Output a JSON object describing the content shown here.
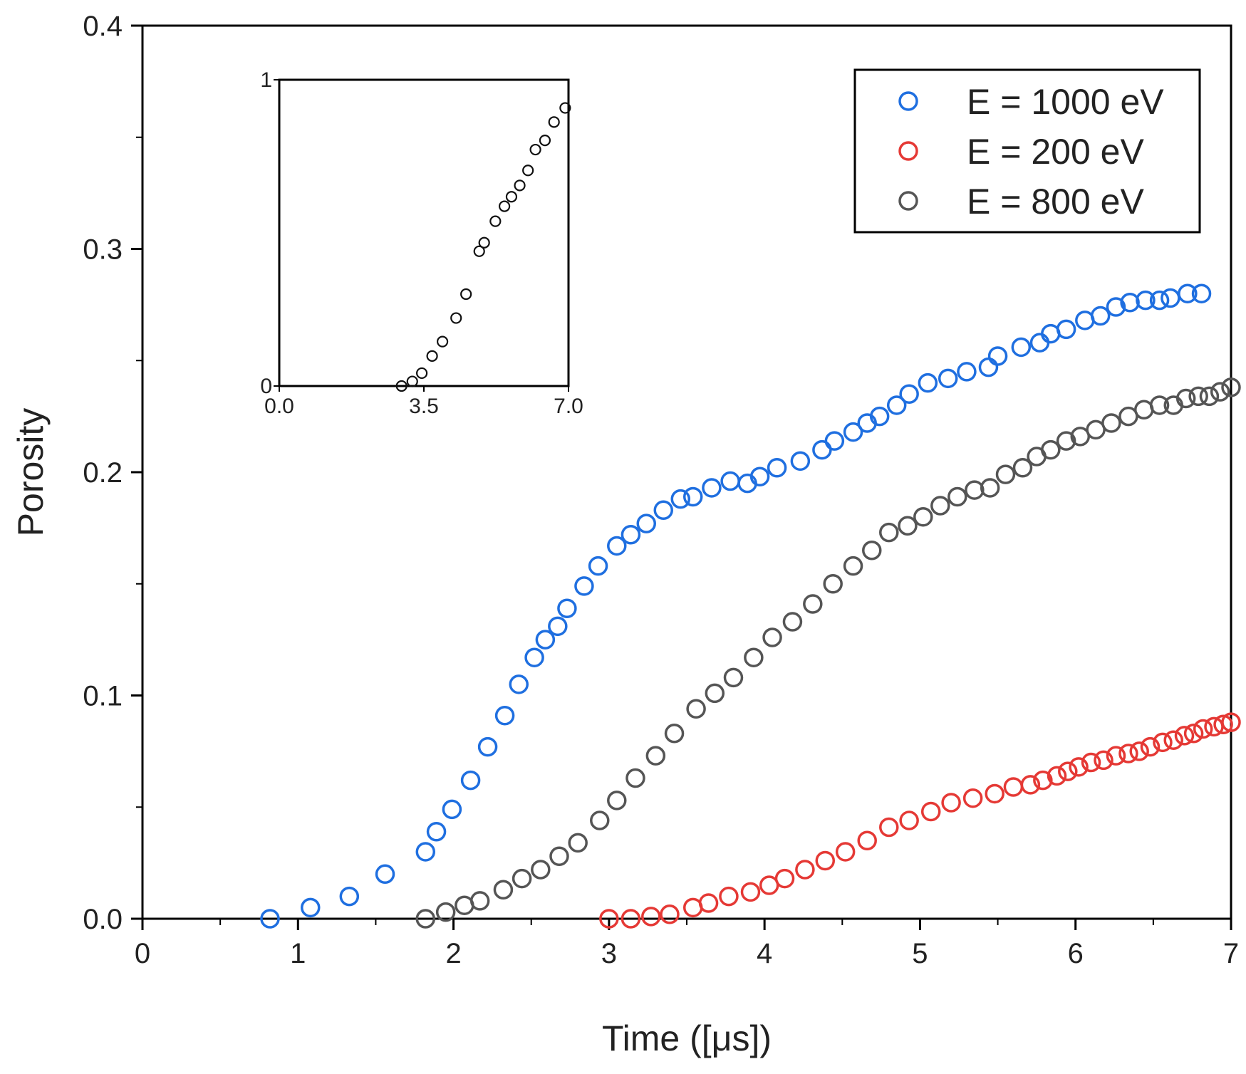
{
  "chart_data": [
    {
      "type": "scatter",
      "title": "",
      "xlabel": "Time ([μs])",
      "ylabel": "Porosity",
      "xlim": [
        0,
        7
      ],
      "ylim": [
        0,
        0.4
      ],
      "xticks": [
        {
          "value": 0,
          "label": "0"
        },
        {
          "value": 1,
          "label": "1"
        },
        {
          "value": 2,
          "label": "2"
        },
        {
          "value": 3,
          "label": "3"
        },
        {
          "value": 4,
          "label": "4"
        },
        {
          "value": 5,
          "label": "5"
        },
        {
          "value": 6,
          "label": "6"
        },
        {
          "value": 7,
          "label": "7"
        }
      ],
      "yticks": [
        {
          "value": 0.0,
          "label": "0.0"
        },
        {
          "value": 0.1,
          "label": "0.1"
        },
        {
          "value": 0.2,
          "label": "0.2"
        },
        {
          "value": 0.3,
          "label": "0.3"
        },
        {
          "value": 0.4,
          "label": "0.4"
        }
      ],
      "grid": false,
      "legend_position": "top-right",
      "series": [
        {
          "name": "E = 1000 eV",
          "color": "#1f6fe0",
          "marker": "open-circle",
          "points": [
            [
              0.82,
              0.0
            ],
            [
              1.08,
              0.005
            ],
            [
              1.33,
              0.01
            ],
            [
              1.56,
              0.02
            ],
            [
              1.82,
              0.03
            ],
            [
              1.89,
              0.039
            ],
            [
              1.99,
              0.049
            ],
            [
              2.11,
              0.062
            ],
            [
              2.22,
              0.077
            ],
            [
              2.33,
              0.091
            ],
            [
              2.42,
              0.105
            ],
            [
              2.52,
              0.117
            ],
            [
              2.59,
              0.125
            ],
            [
              2.67,
              0.131
            ],
            [
              2.73,
              0.139
            ],
            [
              2.84,
              0.149
            ],
            [
              2.93,
              0.158
            ],
            [
              3.05,
              0.167
            ],
            [
              3.14,
              0.172
            ],
            [
              3.24,
              0.177
            ],
            [
              3.35,
              0.183
            ],
            [
              3.46,
              0.188
            ],
            [
              3.54,
              0.189
            ],
            [
              3.66,
              0.193
            ],
            [
              3.78,
              0.196
            ],
            [
              3.89,
              0.195
            ],
            [
              3.97,
              0.198
            ],
            [
              4.08,
              0.202
            ],
            [
              4.23,
              0.205
            ],
            [
              4.37,
              0.21
            ],
            [
              4.45,
              0.214
            ],
            [
              4.57,
              0.218
            ],
            [
              4.66,
              0.222
            ],
            [
              4.74,
              0.225
            ],
            [
              4.85,
              0.23
            ],
            [
              4.93,
              0.235
            ],
            [
              5.05,
              0.24
            ],
            [
              5.18,
              0.242
            ],
            [
              5.3,
              0.245
            ],
            [
              5.44,
              0.247
            ],
            [
              5.5,
              0.252
            ],
            [
              5.65,
              0.256
            ],
            [
              5.77,
              0.258
            ],
            [
              5.84,
              0.262
            ],
            [
              5.94,
              0.264
            ],
            [
              6.06,
              0.268
            ],
            [
              6.16,
              0.27
            ],
            [
              6.26,
              0.274
            ],
            [
              6.35,
              0.276
            ],
            [
              6.45,
              0.277
            ],
            [
              6.54,
              0.277
            ],
            [
              6.61,
              0.278
            ],
            [
              6.72,
              0.28
            ],
            [
              6.81,
              0.28
            ]
          ]
        },
        {
          "name": "E = 200 eV",
          "color": "#e53935",
          "marker": "open-circle",
          "points": [
            [
              3.0,
              0.0
            ],
            [
              3.14,
              0.0
            ],
            [
              3.27,
              0.001
            ],
            [
              3.39,
              0.002
            ],
            [
              3.54,
              0.005
            ],
            [
              3.64,
              0.007
            ],
            [
              3.77,
              0.01
            ],
            [
              3.91,
              0.012
            ],
            [
              4.03,
              0.015
            ],
            [
              4.13,
              0.018
            ],
            [
              4.26,
              0.022
            ],
            [
              4.39,
              0.026
            ],
            [
              4.52,
              0.03
            ],
            [
              4.66,
              0.035
            ],
            [
              4.8,
              0.041
            ],
            [
              4.93,
              0.044
            ],
            [
              5.07,
              0.048
            ],
            [
              5.2,
              0.052
            ],
            [
              5.34,
              0.054
            ],
            [
              5.48,
              0.056
            ],
            [
              5.6,
              0.059
            ],
            [
              5.71,
              0.06
            ],
            [
              5.79,
              0.062
            ],
            [
              5.88,
              0.064
            ],
            [
              5.95,
              0.066
            ],
            [
              6.02,
              0.068
            ],
            [
              6.1,
              0.07
            ],
            [
              6.18,
              0.071
            ],
            [
              6.26,
              0.073
            ],
            [
              6.34,
              0.074
            ],
            [
              6.41,
              0.075
            ],
            [
              6.48,
              0.077
            ],
            [
              6.56,
              0.079
            ],
            [
              6.63,
              0.08
            ],
            [
              6.7,
              0.082
            ],
            [
              6.76,
              0.083
            ],
            [
              6.82,
              0.085
            ],
            [
              6.89,
              0.086
            ],
            [
              6.95,
              0.087
            ],
            [
              7.0,
              0.088
            ]
          ]
        },
        {
          "name": "E = 800 eV",
          "color": "#555555",
          "marker": "open-circle",
          "points": [
            [
              1.82,
              0.0
            ],
            [
              1.95,
              0.003
            ],
            [
              2.07,
              0.006
            ],
            [
              2.17,
              0.008
            ],
            [
              2.32,
              0.013
            ],
            [
              2.44,
              0.018
            ],
            [
              2.56,
              0.022
            ],
            [
              2.68,
              0.028
            ],
            [
              2.8,
              0.034
            ],
            [
              2.94,
              0.044
            ],
            [
              3.05,
              0.053
            ],
            [
              3.17,
              0.063
            ],
            [
              3.3,
              0.073
            ],
            [
              3.42,
              0.083
            ],
            [
              3.56,
              0.094
            ],
            [
              3.68,
              0.101
            ],
            [
              3.8,
              0.108
            ],
            [
              3.93,
              0.117
            ],
            [
              4.05,
              0.126
            ],
            [
              4.18,
              0.133
            ],
            [
              4.31,
              0.141
            ],
            [
              4.44,
              0.15
            ],
            [
              4.57,
              0.158
            ],
            [
              4.69,
              0.165
            ],
            [
              4.8,
              0.173
            ],
            [
              4.92,
              0.176
            ],
            [
              5.02,
              0.18
            ],
            [
              5.13,
              0.185
            ],
            [
              5.24,
              0.189
            ],
            [
              5.35,
              0.192
            ],
            [
              5.45,
              0.193
            ],
            [
              5.55,
              0.199
            ],
            [
              5.66,
              0.202
            ],
            [
              5.75,
              0.207
            ],
            [
              5.84,
              0.21
            ],
            [
              5.94,
              0.214
            ],
            [
              6.03,
              0.216
            ],
            [
              6.13,
              0.219
            ],
            [
              6.23,
              0.222
            ],
            [
              6.34,
              0.225
            ],
            [
              6.44,
              0.228
            ],
            [
              6.54,
              0.23
            ],
            [
              6.63,
              0.23
            ],
            [
              6.71,
              0.233
            ],
            [
              6.79,
              0.234
            ],
            [
              6.86,
              0.234
            ],
            [
              6.93,
              0.236
            ],
            [
              7.0,
              0.238
            ]
          ]
        }
      ]
    },
    {
      "type": "scatter",
      "title": "",
      "subtitle": "inset",
      "xlabel": "",
      "ylabel": "",
      "xlim": [
        0,
        7
      ],
      "ylim": [
        0,
        1
      ],
      "xticks": [
        {
          "value": 0,
          "label": "0.0"
        },
        {
          "value": 3.5,
          "label": "3.5"
        },
        {
          "value": 7,
          "label": "7.0"
        }
      ],
      "yticks": [
        {
          "value": 0,
          "label": "0"
        },
        {
          "value": 1,
          "label": "1"
        }
      ],
      "grid": false,
      "series": [
        {
          "name": "inset",
          "color": "#111111",
          "marker": "open-circle",
          "points": [
            [
              2.96,
              0.0
            ],
            [
              3.22,
              0.015
            ],
            [
              3.45,
              0.042
            ],
            [
              3.7,
              0.098
            ],
            [
              3.95,
              0.145
            ],
            [
              4.28,
              0.222
            ],
            [
              4.52,
              0.3
            ],
            [
              4.84,
              0.44
            ],
            [
              4.96,
              0.468
            ],
            [
              5.23,
              0.538
            ],
            [
              5.45,
              0.587
            ],
            [
              5.62,
              0.618
            ],
            [
              5.82,
              0.655
            ],
            [
              6.02,
              0.704
            ],
            [
              6.2,
              0.772
            ],
            [
              6.43,
              0.802
            ],
            [
              6.65,
              0.862
            ],
            [
              6.92,
              0.908
            ]
          ]
        }
      ]
    }
  ]
}
